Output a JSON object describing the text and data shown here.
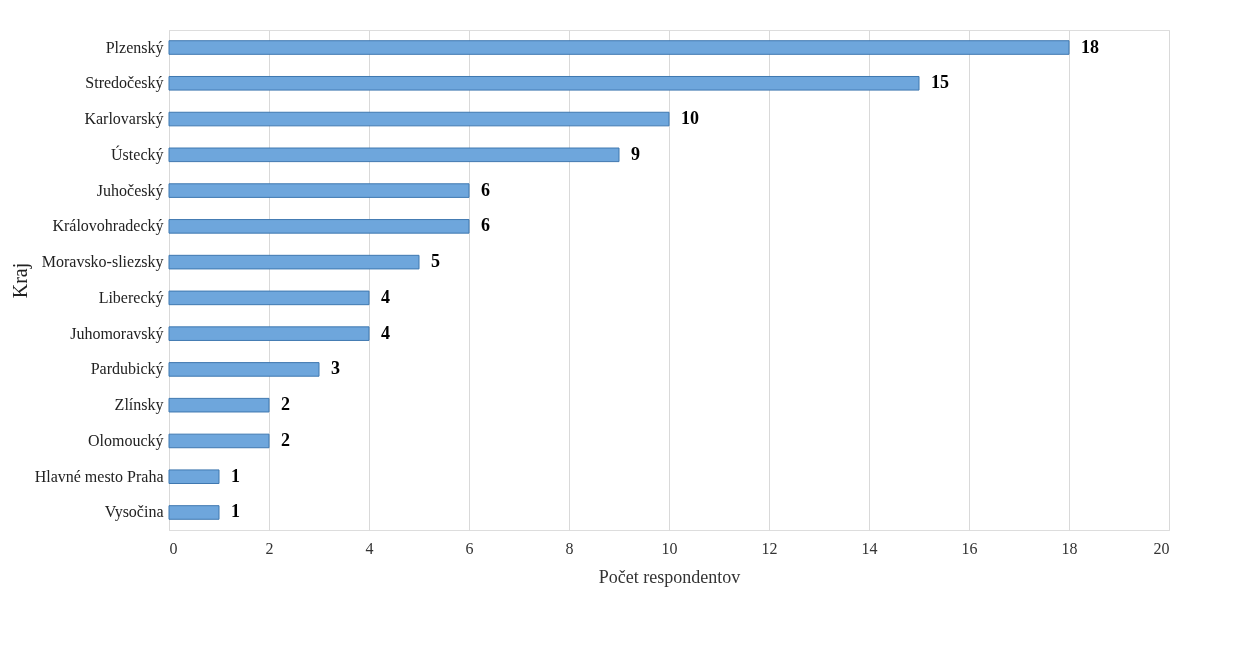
{
  "chart_data": {
    "type": "bar",
    "orientation": "horizontal",
    "xlabel": "Počet respondentov",
    "ylabel": "Kraj",
    "categories": [
      "Plzenský",
      "Stredočeský",
      "Karlovarský",
      "Ústecký",
      "Juhočeský",
      "Královohradecký",
      "Moravsko-sliezsky",
      "Liberecký",
      "Juhomoravský",
      "Pardubický",
      "Zlínsky",
      "Olomoucký",
      "Hlavné mesto Praha",
      "Vysočina"
    ],
    "values": [
      18,
      15,
      10,
      9,
      6,
      6,
      5,
      4,
      4,
      3,
      2,
      2,
      1,
      1
    ],
    "color": "#6ea6dc",
    "xlim": [
      0,
      20
    ],
    "xticks": [
      0,
      2,
      4,
      6,
      8,
      10,
      12,
      14,
      16,
      18,
      20
    ],
    "grid": "x",
    "data_labels": true
  }
}
